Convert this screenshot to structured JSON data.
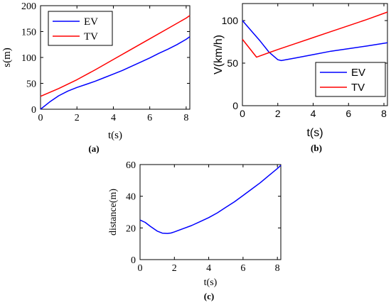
{
  "colors": {
    "ev": "#0000ff",
    "tv": "#ff0000",
    "axis": "#000000"
  },
  "chart_data": [
    {
      "id": "a",
      "type": "line",
      "panel_label": "(a)",
      "xlabel": "t(s)",
      "ylabel": "s(m)",
      "xlim": [
        0,
        8.2
      ],
      "ylim": [
        0,
        200
      ],
      "xticks": [
        0,
        2,
        4,
        6,
        8
      ],
      "yticks": [
        0,
        50,
        100,
        150,
        200
      ],
      "legend": {
        "placement": "top-left"
      },
      "series": [
        {
          "name": "EV",
          "color": "#0000ff",
          "x": [
            0,
            0.5,
            1,
            1.5,
            2,
            2.5,
            3,
            3.5,
            4,
            4.5,
            5,
            5.5,
            6,
            6.5,
            7,
            7.5,
            8,
            8.2
          ],
          "y": [
            0,
            14,
            26,
            35,
            42,
            48,
            54,
            61,
            68,
            75,
            83,
            91,
            99,
            108,
            116,
            125,
            135,
            140
          ]
        },
        {
          "name": "TV",
          "color": "#ff0000",
          "x": [
            0,
            1,
            2,
            3,
            4,
            5,
            6,
            7,
            8,
            8.2
          ],
          "y": [
            25,
            40,
            57,
            76,
            96,
            116,
            136,
            156,
            176,
            181
          ]
        }
      ]
    },
    {
      "id": "b",
      "type": "line",
      "panel_label": "(b)",
      "xlabel": "t(s)",
      "ylabel": "V(km/h)",
      "xlim": [
        0,
        8.2
      ],
      "ylim": [
        0,
        120
      ],
      "xticks": [
        0,
        2,
        4,
        6,
        8
      ],
      "yticks": [
        0,
        50,
        100
      ],
      "legend": {
        "placement": "bottom-right"
      },
      "series": [
        {
          "name": "EV",
          "color": "#0000ff",
          "x": [
            0,
            0.5,
            1,
            1.5,
            2,
            2.2,
            3,
            4,
            5,
            6,
            7,
            8.2
          ],
          "y": [
            100,
            88,
            76,
            63,
            54,
            53,
            56,
            60,
            64,
            67,
            70,
            74
          ]
        },
        {
          "name": "TV",
          "color": "#ff0000",
          "x": [
            0,
            0.8,
            2,
            3,
            4,
            5,
            6,
            7,
            8.2
          ],
          "y": [
            78,
            57,
            66,
            73,
            80,
            87,
            94,
            101,
            110
          ]
        }
      ]
    },
    {
      "id": "c",
      "type": "line",
      "panel_label": "(c)",
      "xlabel": "t(s)",
      "ylabel": "distance(m)",
      "xlim": [
        0,
        8.2
      ],
      "ylim": [
        0,
        60
      ],
      "xticks": [
        0,
        2,
        4,
        6,
        8
      ],
      "yticks": [
        0,
        20,
        40,
        60
      ],
      "series": [
        {
          "name": "",
          "color": "#0000ff",
          "x": [
            0,
            0.3,
            0.6,
            1,
            1.3,
            1.6,
            1.8,
            2,
            2.5,
            3,
            3.5,
            4,
            4.5,
            5,
            5.5,
            6,
            6.5,
            7,
            7.5,
            8,
            8.2
          ],
          "y": [
            25,
            23.5,
            21,
            18,
            16.7,
            16.5,
            16.8,
            17.5,
            19.5,
            21.5,
            24,
            26.5,
            29.5,
            33,
            36.5,
            40.5,
            44.5,
            48.5,
            53,
            57.5,
            59.5
          ]
        }
      ]
    }
  ]
}
